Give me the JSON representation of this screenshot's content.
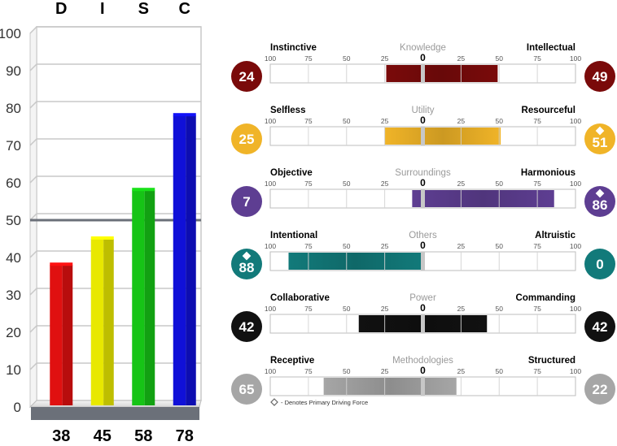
{
  "chart_data": [
    {
      "type": "bar",
      "categories": [
        "D",
        "I",
        "S",
        "C"
      ],
      "values": [
        38,
        45,
        58,
        78
      ],
      "value_labels": [
        "38",
        "45",
        "58",
        "78"
      ],
      "colors": [
        "#e01010",
        "#e8e800",
        "#16c416",
        "#1010d8"
      ],
      "ylim": [
        0,
        100
      ],
      "yticks": [
        "0",
        "10",
        "20",
        "30",
        "40",
        "50",
        "60",
        "70",
        "80",
        "90",
        "100"
      ],
      "reference_line": 50,
      "grid": true
    },
    {
      "type": "bar",
      "orientation": "horizontal-diverging",
      "scale_ticks": [
        "100",
        "75",
        "50",
        "25",
        "0",
        "25",
        "50",
        "75",
        "100"
      ],
      "rows": [
        {
          "name": "Knowledge",
          "left_label": "Instinctive",
          "right_label": "Intellectual",
          "left_score": "24",
          "right_score": "49",
          "left_primary": false,
          "right_primary": false,
          "color": "#7a0a0a"
        },
        {
          "name": "Utility",
          "left_label": "Selfless",
          "right_label": "Resourceful",
          "left_score": "25",
          "right_score": "51",
          "left_primary": false,
          "right_primary": true,
          "color": "#f0b428"
        },
        {
          "name": "Surroundings",
          "left_label": "Objective",
          "right_label": "Harmonious",
          "left_score": "7",
          "right_score": "86",
          "left_primary": false,
          "right_primary": true,
          "color": "#5e3e92"
        },
        {
          "name": "Others",
          "left_label": "Intentional",
          "right_label": "Altruistic",
          "left_score": "88",
          "right_score": "0",
          "left_primary": true,
          "right_primary": false,
          "color": "#127a7a"
        },
        {
          "name": "Power",
          "left_label": "Collaborative",
          "right_label": "Commanding",
          "left_score": "42",
          "right_score": "42",
          "left_primary": false,
          "right_primary": false,
          "color": "#111111"
        },
        {
          "name": "Methodologies",
          "left_label": "Receptive",
          "right_label": "Structured",
          "left_score": "65",
          "right_score": "22",
          "left_primary": false,
          "right_primary": false,
          "color": "#a6a6a6"
        }
      ],
      "legend_note": "- Denotes Primary Driving Force"
    }
  ]
}
